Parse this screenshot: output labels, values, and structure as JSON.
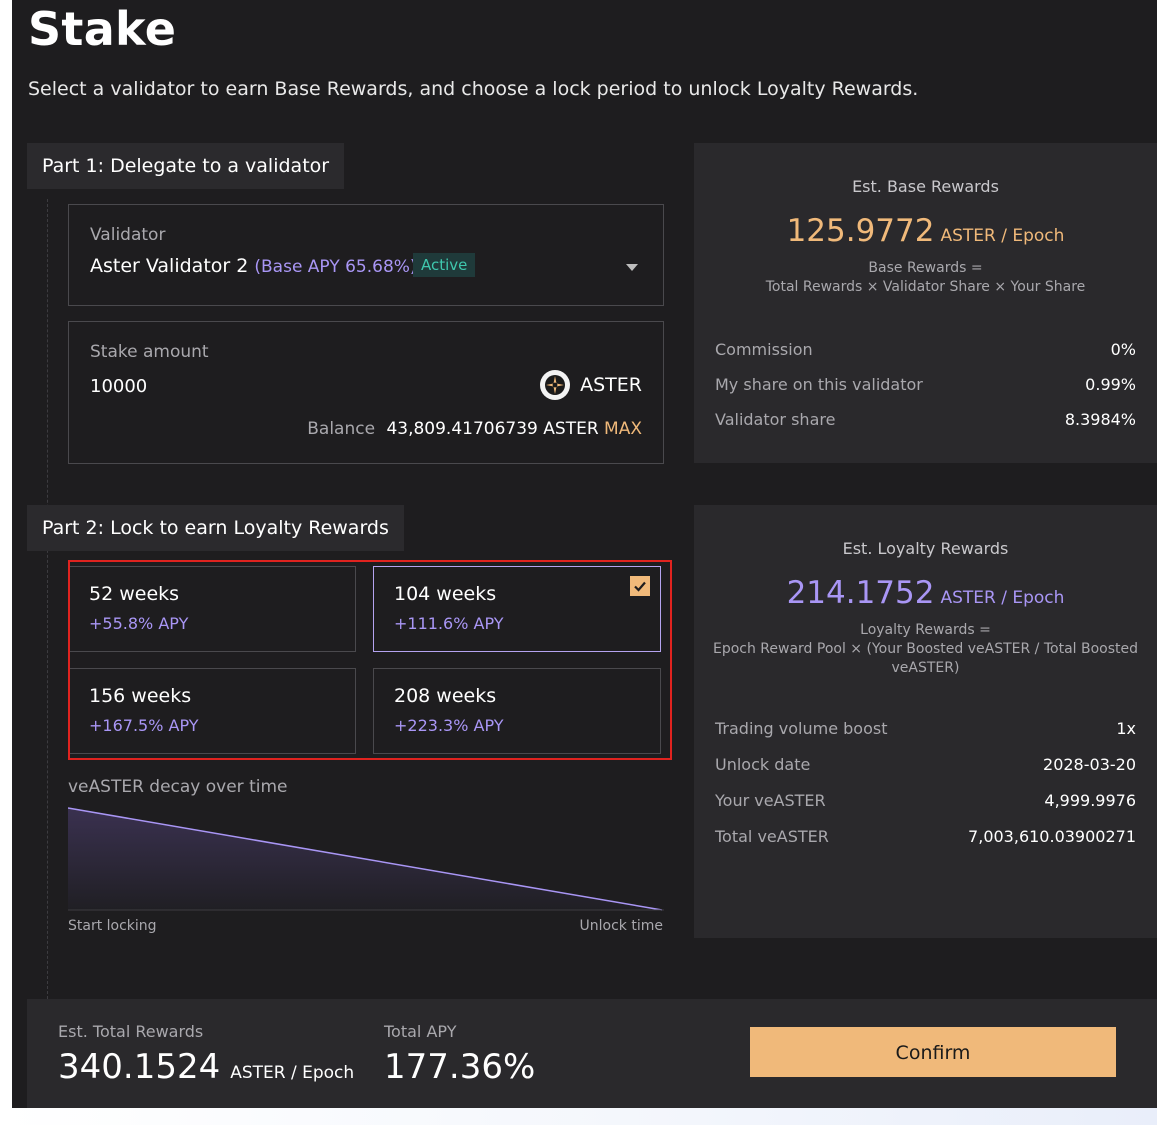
{
  "page": {
    "title": "Stake",
    "subtitle": "Select a validator to earn Base Rewards, and choose a lock period to unlock Loyalty Rewards."
  },
  "part1": {
    "label": "Part 1: Delegate to a validator",
    "validator": {
      "label": "Validator",
      "name": "Aster Validator 2",
      "apy": "(Base APY 65.68%)",
      "status": "Active"
    },
    "stake": {
      "label": "Stake amount",
      "value": "10000",
      "token": "ASTER",
      "balance_label": "Balance",
      "balance_value": "43,809.41706739 ASTER",
      "max_label": "MAX"
    }
  },
  "part2": {
    "label": "Part 2: Lock to earn Loyalty Rewards",
    "options": [
      {
        "weeks": "52 weeks",
        "apy": "+55.8% APY",
        "selected": false
      },
      {
        "weeks": "104 weeks",
        "apy": "+111.6% APY",
        "selected": true
      },
      {
        "weeks": "156 weeks",
        "apy": "+167.5% APY",
        "selected": false
      },
      {
        "weeks": "208 weeks",
        "apy": "+223.3% APY",
        "selected": false
      }
    ],
    "decay": {
      "title": "veASTER decay over time",
      "start_label": "Start locking",
      "end_label": "Unlock time"
    }
  },
  "base_rewards": {
    "title": "Est. Base Rewards",
    "value": "125.9772",
    "unit": "ASTER / Epoch",
    "formula_line1": "Base Rewards =",
    "formula_line2": "Total Rewards × Validator Share × Your Share",
    "rows": [
      {
        "label": "Commission",
        "value": "0%"
      },
      {
        "label": "My share on this validator",
        "value": "0.99%"
      },
      {
        "label": "Validator share",
        "value": "8.3984%"
      }
    ]
  },
  "loyalty_rewards": {
    "title": "Est. Loyalty Rewards",
    "value": "214.1752",
    "unit": "ASTER / Epoch",
    "formula_line1": "Loyalty Rewards =",
    "formula_line2": "Epoch Reward Pool × (Your Boosted veASTER / Total Boosted veASTER)",
    "rows": [
      {
        "label": "Trading volume boost",
        "value": "1x"
      },
      {
        "label": "Unlock date",
        "value": "2028-03-20"
      },
      {
        "label": "Your veASTER",
        "value": "4,999.9976"
      },
      {
        "label": "Total veASTER",
        "value": "7,003,610.03900271"
      }
    ]
  },
  "footer": {
    "total_label": "Est. Total Rewards",
    "total_value": "340.1524",
    "total_unit": "ASTER / Epoch",
    "apy_label": "Total APY",
    "apy_value": "177.36%",
    "confirm_label": "Confirm"
  },
  "colors": {
    "accent_orange": "#f0b97a",
    "accent_purple": "#a996f5",
    "active_green": "#3fc7ad",
    "selection_red": "#e0231f"
  }
}
